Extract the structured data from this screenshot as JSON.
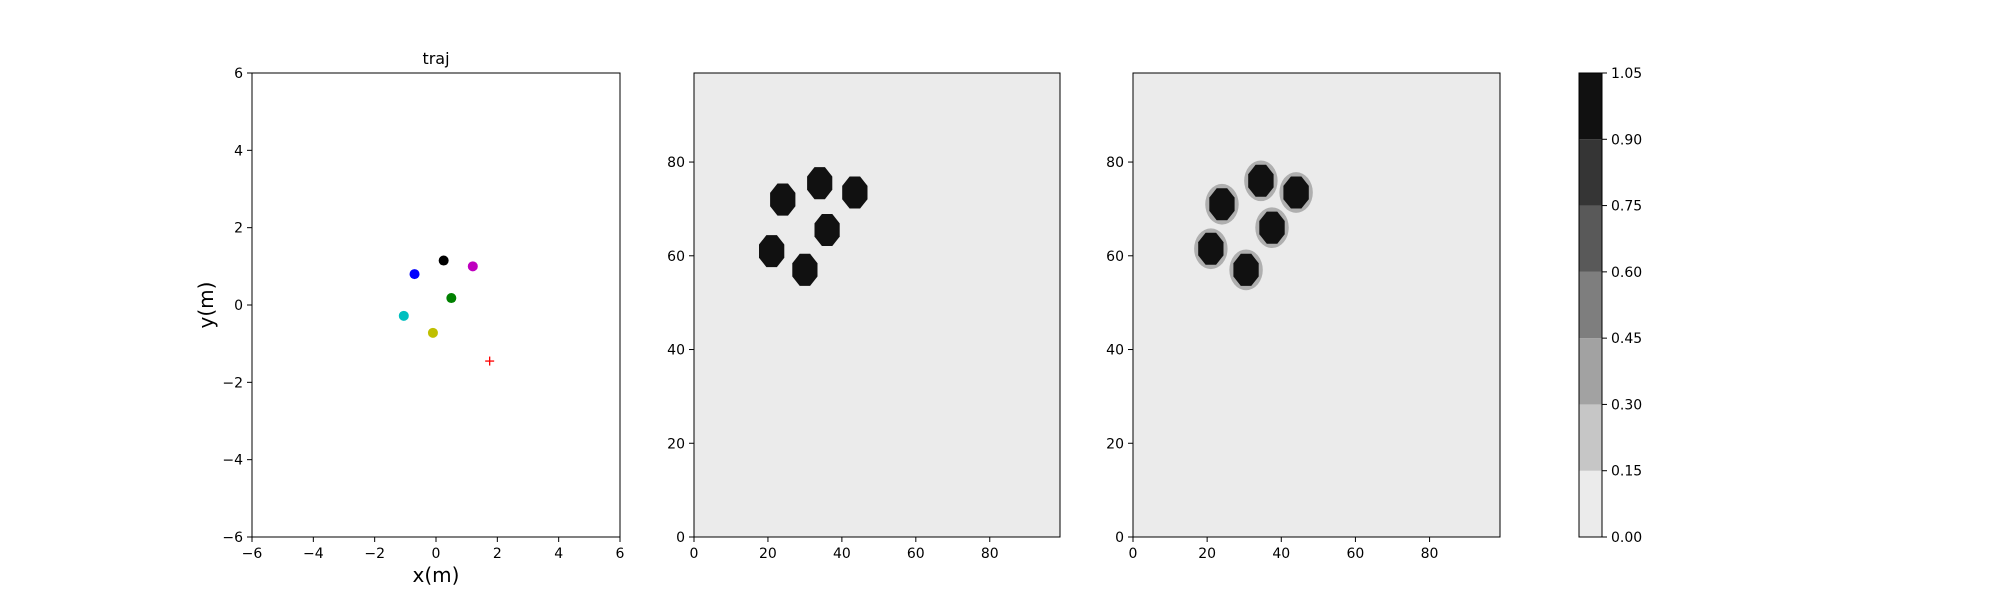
{
  "chart_data": [
    {
      "type": "scatter",
      "title": "traj",
      "xlabel": "x(m)",
      "ylabel": "y(m)",
      "xlim": [
        -6,
        6
      ],
      "ylim": [
        -6,
        6
      ],
      "xticks": [
        -6,
        -4,
        -2,
        0,
        2,
        4,
        6
      ],
      "yticks": [
        -6,
        -4,
        -2,
        0,
        2,
        4,
        6
      ],
      "tick_labels_x": [
        "−6",
        "−4",
        "−2",
        "0",
        "2",
        "4",
        "6"
      ],
      "tick_labels_y": [
        "−6",
        "−4",
        "−2",
        "0",
        "2",
        "4",
        "6"
      ],
      "grid": false,
      "points": [
        {
          "x": 0.25,
          "y": 1.15,
          "color": "#000000",
          "marker": "circle"
        },
        {
          "x": -0.7,
          "y": 0.8,
          "color": "#0000ff",
          "marker": "circle"
        },
        {
          "x": 1.2,
          "y": 1.0,
          "color": "#bf00bf",
          "marker": "circle"
        },
        {
          "x": 0.5,
          "y": 0.18,
          "color": "#008000",
          "marker": "circle"
        },
        {
          "x": -1.05,
          "y": -0.28,
          "color": "#00bfbf",
          "marker": "circle"
        },
        {
          "x": -0.1,
          "y": -0.72,
          "color": "#bfbf00",
          "marker": "circle"
        },
        {
          "x": 1.75,
          "y": -1.45,
          "color": "#ff0000",
          "marker": "plus"
        }
      ]
    },
    {
      "type": "heatmap",
      "xlim": [
        0,
        99
      ],
      "ylim": [
        0,
        99
      ],
      "xticks": [
        0,
        20,
        40,
        60,
        80
      ],
      "yticks": [
        0,
        20,
        40,
        60,
        80
      ],
      "tick_labels_x": [
        "0",
        "20",
        "40",
        "60",
        "80"
      ],
      "tick_labels_y": [
        "0",
        "20",
        "40",
        "60",
        "80"
      ],
      "background_value": 0.05,
      "blobs": [
        {
          "x": 24,
          "y": 72,
          "value": 1.0
        },
        {
          "x": 34,
          "y": 75.5,
          "value": 1.0
        },
        {
          "x": 43.5,
          "y": 73.5,
          "value": 1.0
        },
        {
          "x": 36,
          "y": 65.5,
          "value": 1.0
        },
        {
          "x": 21,
          "y": 61,
          "value": 1.0
        },
        {
          "x": 30,
          "y": 57,
          "value": 1.0
        }
      ]
    },
    {
      "type": "heatmap",
      "xlim": [
        0,
        99
      ],
      "ylim": [
        0,
        99
      ],
      "xticks": [
        0,
        20,
        40,
        60,
        80
      ],
      "yticks": [
        0,
        20,
        40,
        60,
        80
      ],
      "tick_labels_x": [
        "0",
        "20",
        "40",
        "60",
        "80"
      ],
      "tick_labels_y": [
        "0",
        "20",
        "40",
        "60",
        "80"
      ],
      "background_value": 0.05,
      "blobs": [
        {
          "x": 24,
          "y": 71,
          "value": 1.0
        },
        {
          "x": 34.5,
          "y": 76,
          "value": 1.0
        },
        {
          "x": 44,
          "y": 73.5,
          "value": 1.0
        },
        {
          "x": 37.5,
          "y": 66,
          "value": 1.0
        },
        {
          "x": 21,
          "y": 61.5,
          "value": 1.0
        },
        {
          "x": 30.5,
          "y": 57,
          "value": 1.0
        }
      ]
    }
  ],
  "colorbar": {
    "levels": [
      0.0,
      0.15,
      0.3,
      0.45,
      0.6,
      0.75,
      0.9,
      1.05
    ],
    "tick_labels": [
      "0.00",
      "0.15",
      "0.30",
      "0.45",
      "0.60",
      "0.75",
      "0.90",
      "1.05"
    ],
    "colors": [
      "#ebebeb",
      "#c6c6c6",
      "#a2a2a2",
      "#7e7e7e",
      "#595959",
      "#353535",
      "#111111"
    ]
  }
}
